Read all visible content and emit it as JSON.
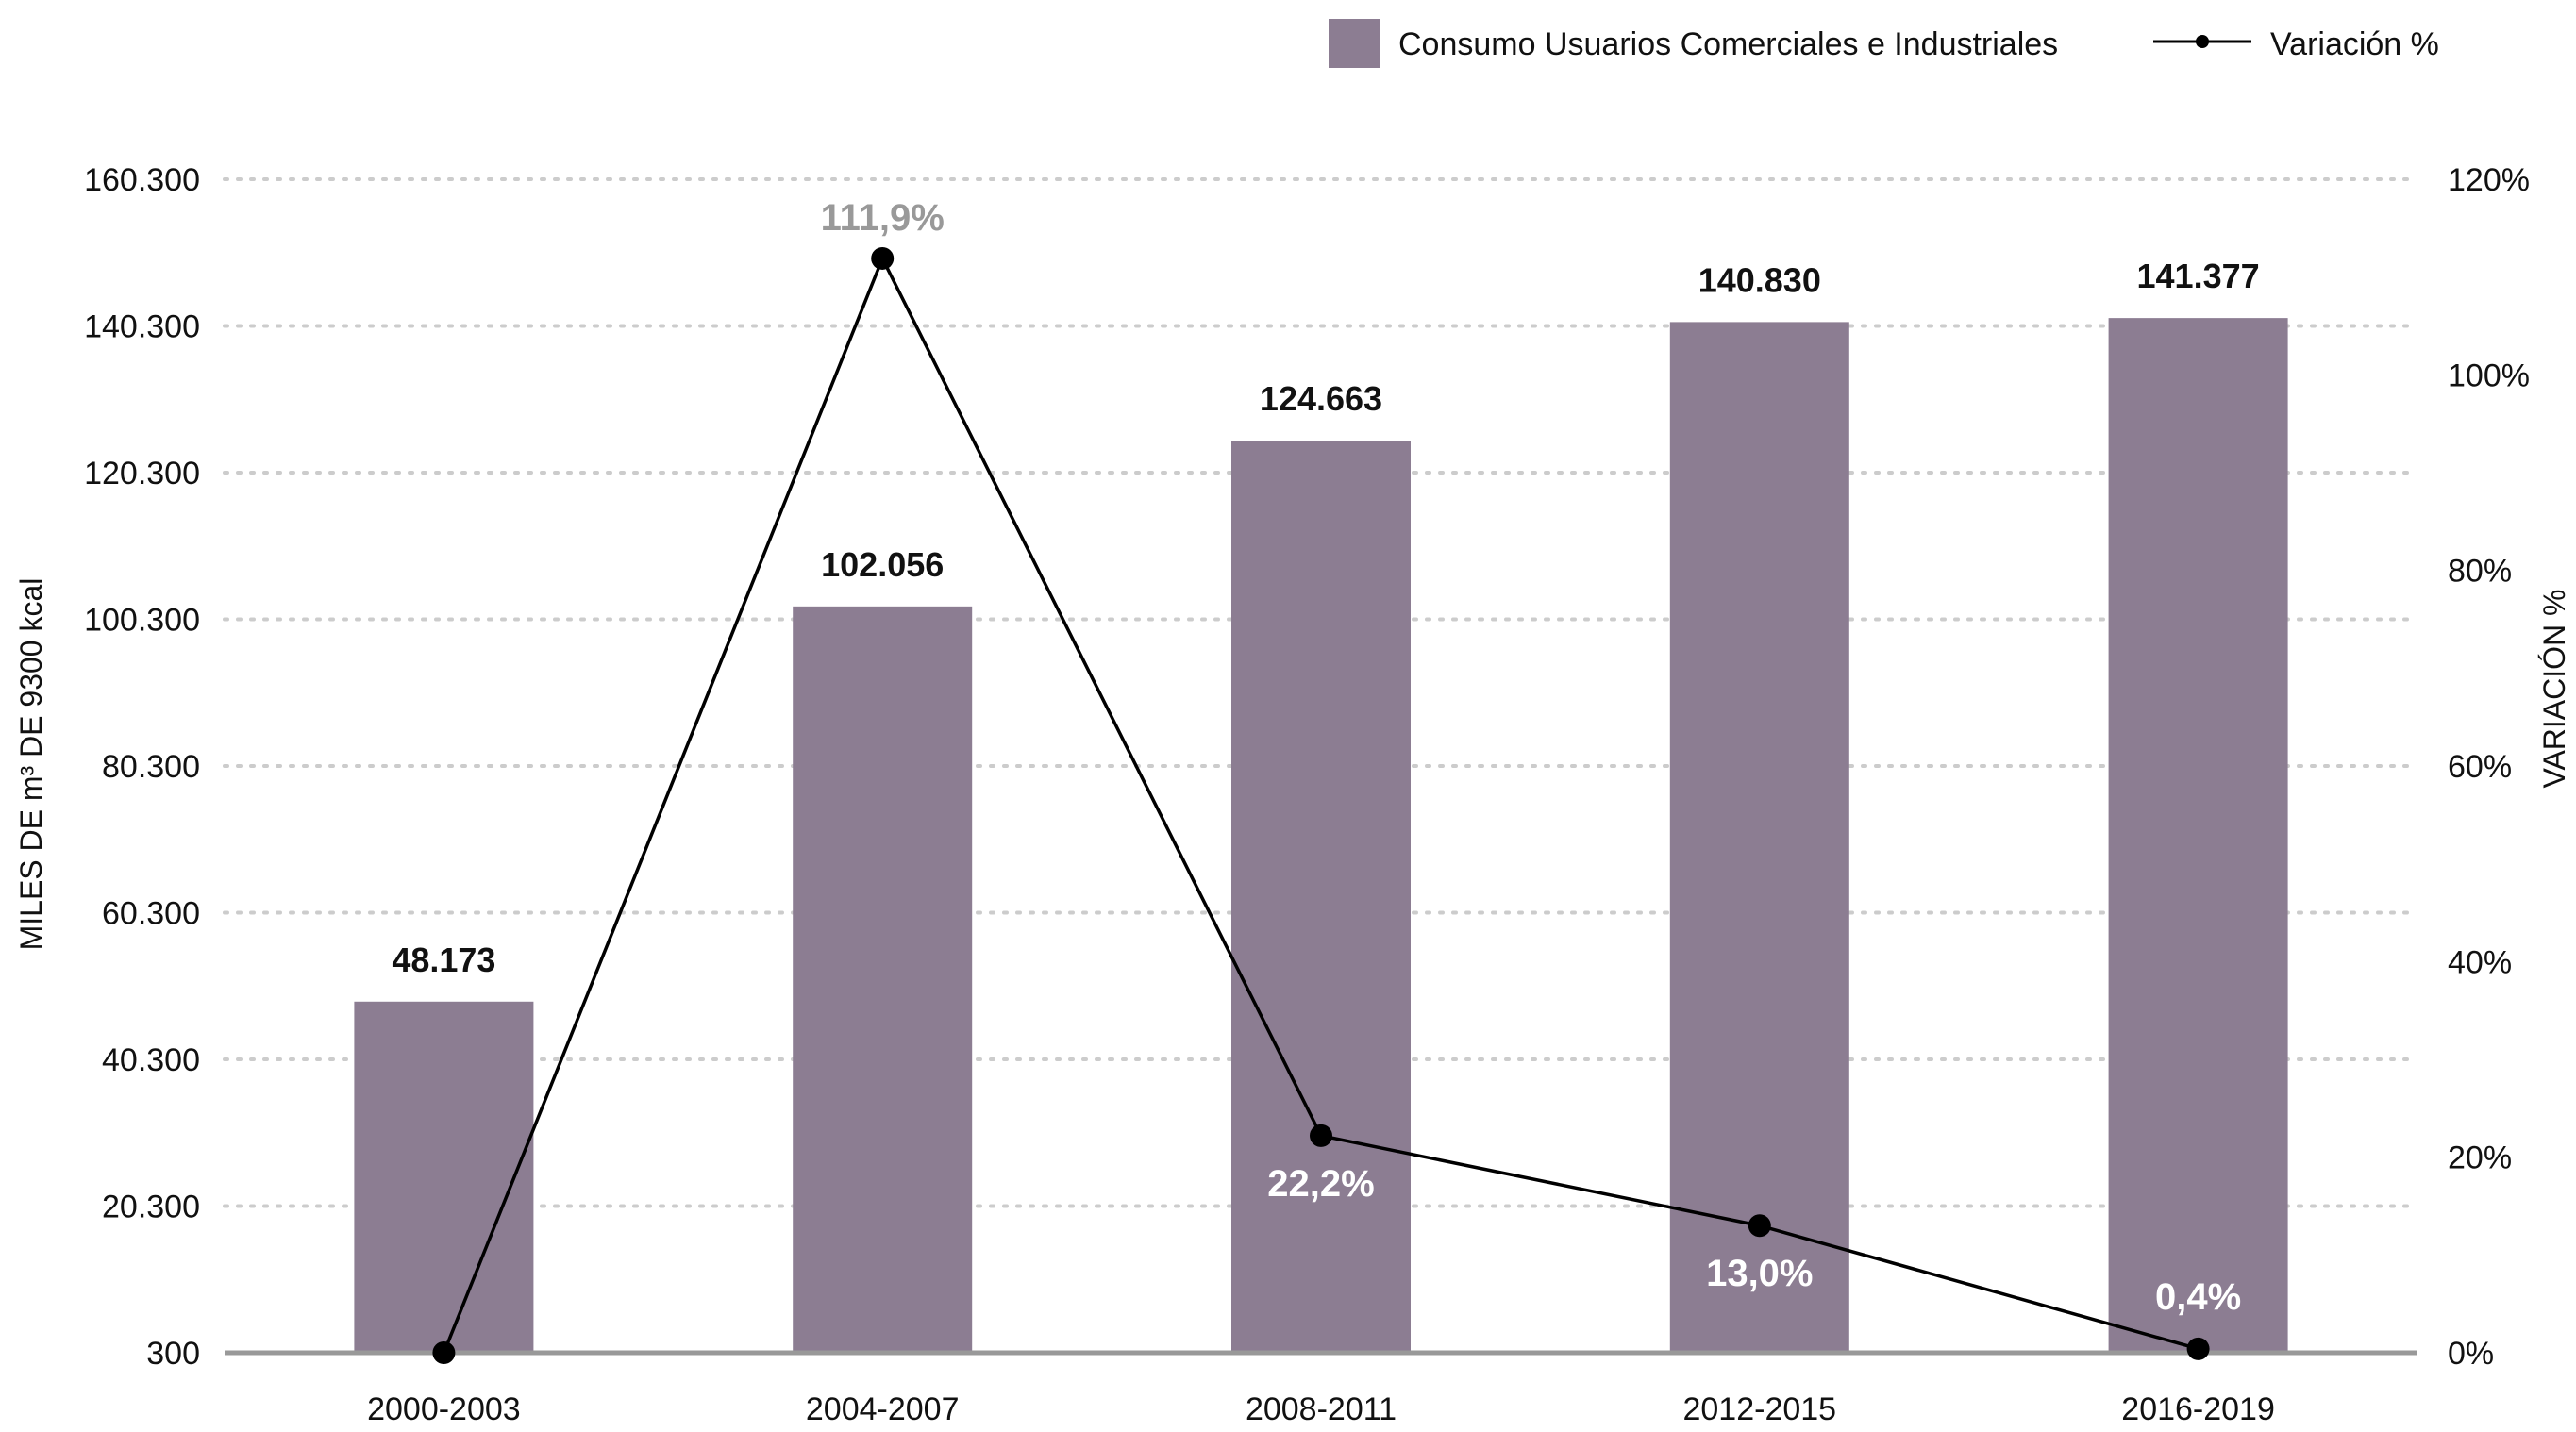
{
  "chart_data": {
    "type": "bar",
    "categories": [
      "2000-2003",
      "2004-2007",
      "2008-2011",
      "2012-2015",
      "2016-2019"
    ],
    "series": [
      {
        "name": "Consumo Usuarios Comerciales e Industriales",
        "type": "bar",
        "axis": "left",
        "values": [
          48173,
          102056,
          124663,
          140830,
          141377
        ],
        "value_labels": [
          "48.173",
          "102.056",
          "124.663",
          "140.830",
          "141.377"
        ],
        "color": "#8c7d92"
      },
      {
        "name": "Variación %",
        "type": "line",
        "axis": "right",
        "values": [
          0,
          111.9,
          22.2,
          13.0,
          0.4
        ],
        "value_labels": [
          "",
          "111,9%",
          "22,2%",
          "13,0%",
          "0,4%"
        ],
        "label_colors": [
          "#111111",
          "#999999",
          "#ffffff",
          "#ffffff",
          "#ffffff"
        ],
        "color": "#000000"
      }
    ],
    "y_left": {
      "label": "MILES DE m³ DE 9300 kcal",
      "range": [
        300,
        160300
      ],
      "ticks": [
        300,
        20300,
        40300,
        60300,
        80300,
        100300,
        120300,
        140300,
        160300
      ],
      "tick_labels": [
        "300",
        "20.300",
        "40.300",
        "60.300",
        "80.300",
        "100.300",
        "120.300",
        "140.300",
        "160.300"
      ]
    },
    "y_right": {
      "label": "VARIACIÓN %",
      "range": [
        0,
        120
      ],
      "ticks": [
        0,
        20,
        40,
        60,
        80,
        100,
        120
      ],
      "tick_labels": [
        "0%",
        "20%",
        "40%",
        "60%",
        "80%",
        "100%",
        "120%"
      ]
    },
    "grid": "dotted-horizontal",
    "legend": "top-right",
    "colors": {
      "bar": "#8c7d92",
      "line": "#000000",
      "grid": "#cccccc",
      "baseline": "#999999"
    }
  }
}
